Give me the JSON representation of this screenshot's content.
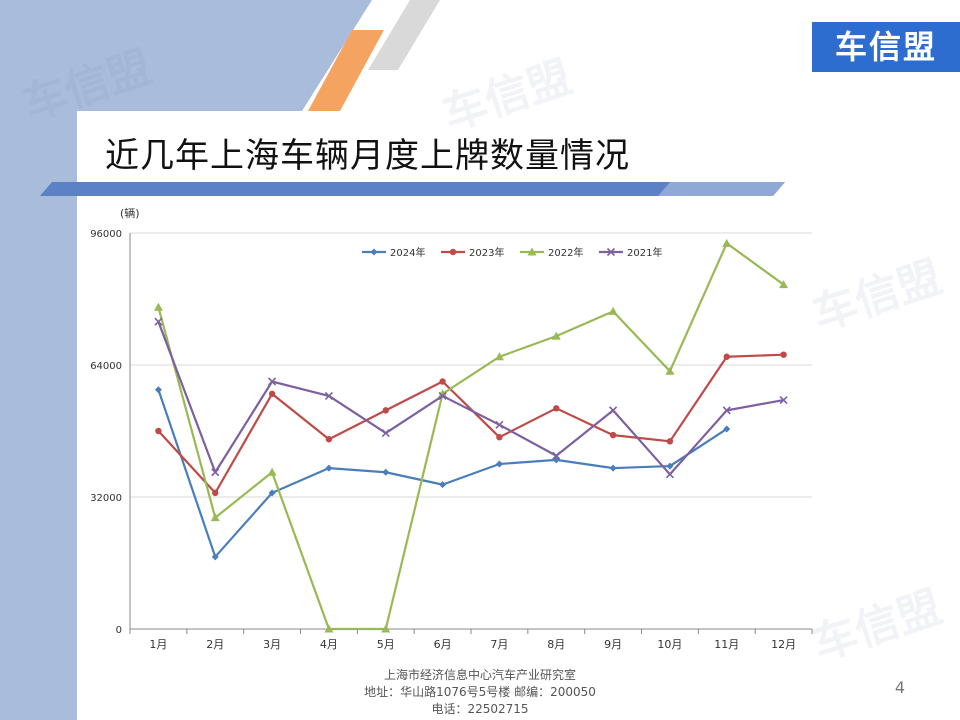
{
  "brand": {
    "logo_text": "车信盟",
    "watermark_text": "车信盟",
    "accent_color": "#2e6dd0",
    "side_color": "#a9bcdc",
    "stripe_orange": "#f4a460",
    "stripe_gray": "#d9d9d9"
  },
  "page": {
    "title": "近几年上海车辆月度上牌数量情况",
    "number": "4"
  },
  "footer": {
    "line1": "上海市经济信息中心汽车产业研究室",
    "line2": "地址：华山路1076号5号楼   邮编：200050",
    "line3": "电话：22502715"
  },
  "chart_data": {
    "type": "line",
    "unit_label": "(辆)",
    "categories": [
      "1月",
      "2月",
      "3月",
      "4月",
      "5月",
      "6月",
      "7月",
      "8月",
      "9月",
      "10月",
      "11月",
      "12月"
    ],
    "yticks": [
      "96000",
      "64000",
      "32000",
      "0"
    ],
    "ylim": [
      0,
      96000
    ],
    "grid": true,
    "legend_position": "top",
    "series": [
      {
        "name": "2024年",
        "color": "#4a7ebb",
        "marker": "diamond",
        "values": [
          58000,
          17500,
          33000,
          39000,
          38000,
          35000,
          40000,
          41000,
          39000,
          39500,
          48500,
          null
        ]
      },
      {
        "name": "2023年",
        "color": "#be4b48",
        "marker": "circle",
        "values": [
          48000,
          33000,
          57000,
          46000,
          53000,
          60000,
          46500,
          53500,
          47000,
          45500,
          66000,
          66500
        ]
      },
      {
        "name": "2022年",
        "color": "#98b954",
        "marker": "triangle",
        "values": [
          78000,
          27000,
          38000,
          0,
          0,
          57000,
          66000,
          71000,
          77000,
          62500,
          93500,
          83500
        ]
      },
      {
        "name": "2021年",
        "color": "#7d60a0",
        "marker": "x",
        "values": [
          74500,
          38000,
          60000,
          56500,
          47500,
          56500,
          49500,
          42000,
          53000,
          37500,
          53000,
          55500
        ]
      }
    ]
  }
}
